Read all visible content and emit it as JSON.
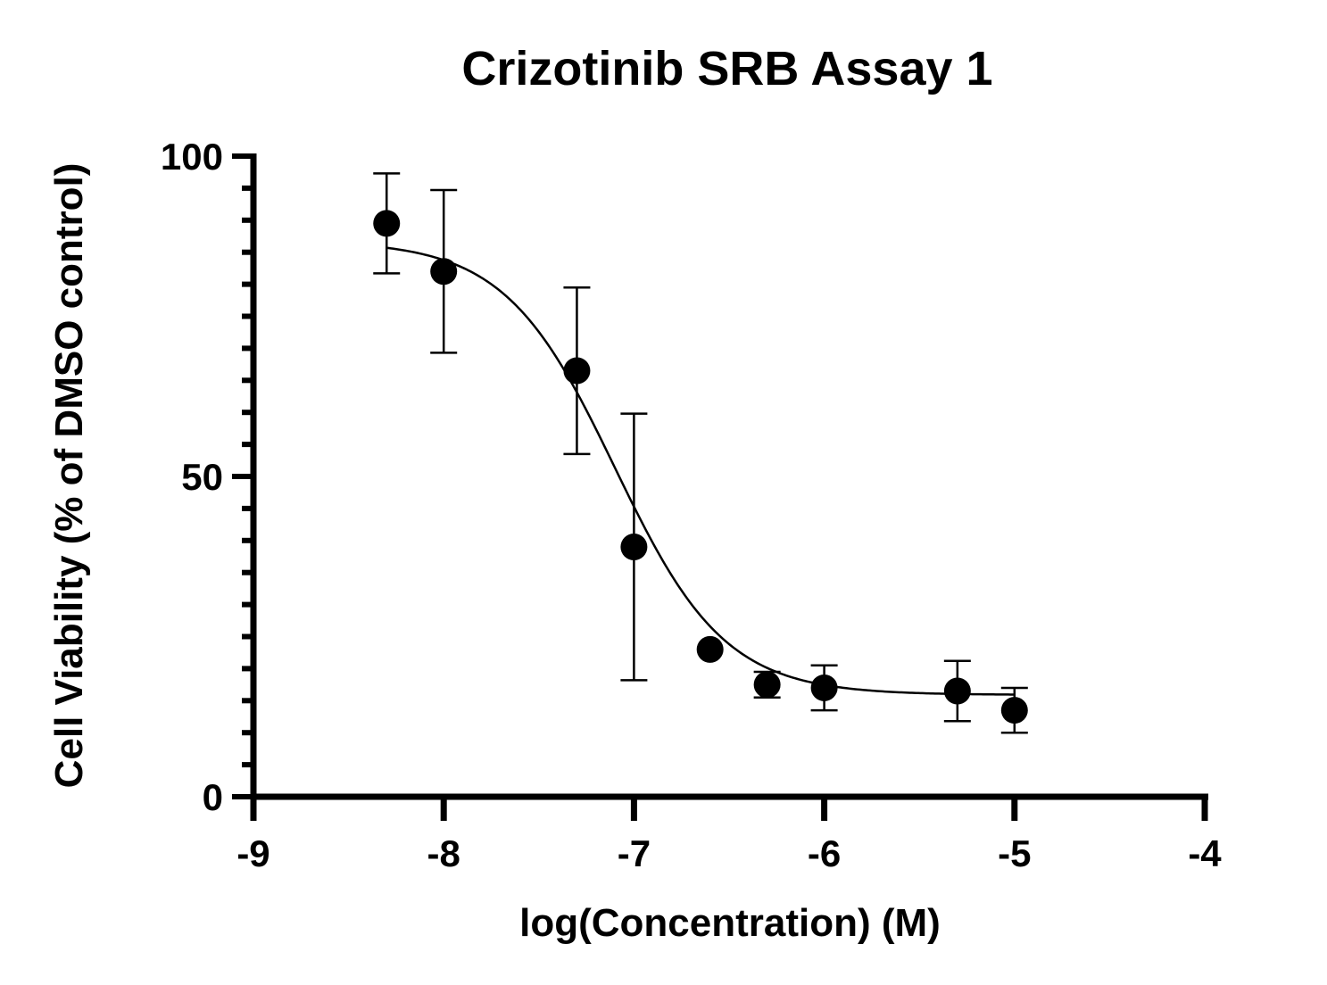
{
  "chart_data": {
    "type": "scatter",
    "title": "Crizotinib SRB Assay 1",
    "xlabel": "log(Concentration) (M)",
    "ylabel": "Cell Viability (% of DMSO control)",
    "xlim": [
      -9,
      -4
    ],
    "ylim": [
      0,
      100
    ],
    "x_ticks": [
      -9,
      -8,
      -7,
      -6,
      -5,
      -4
    ],
    "x_tick_labels": [
      "-9",
      "-8",
      "-7",
      "-6",
      "-5",
      "-4"
    ],
    "y_ticks": [
      0,
      50,
      100
    ],
    "y_tick_labels": [
      "0",
      "50",
      "100"
    ],
    "y_minor_step": 5,
    "grid": false,
    "series": [
      {
        "marker": "filled-circle",
        "color": "#000000",
        "points": [
          {
            "x": -8.3,
            "y": 89.5,
            "err": 7.8
          },
          {
            "x": -8.0,
            "y": 82.0,
            "err": 12.7
          },
          {
            "x": -7.3,
            "y": 66.5,
            "err": 13.0
          },
          {
            "x": -7.0,
            "y": 39.0,
            "err": 20.8
          },
          {
            "x": -6.6,
            "y": 23.0,
            "err": 0
          },
          {
            "x": -6.3,
            "y": 17.5,
            "err": 2.0
          },
          {
            "x": -6.0,
            "y": 17.0,
            "err": 3.5
          },
          {
            "x": -5.3,
            "y": 16.5,
            "err": 4.7
          },
          {
            "x": -5.0,
            "y": 13.5,
            "err": 3.5
          }
        ]
      }
    ],
    "fit": {
      "type": "sigmoidal dose-response",
      "top": 86.8,
      "bottom": 15.9,
      "logIC50": -7.1,
      "hill_slope": -1.5,
      "x_range": [
        -8.3,
        -5.0
      ]
    }
  }
}
